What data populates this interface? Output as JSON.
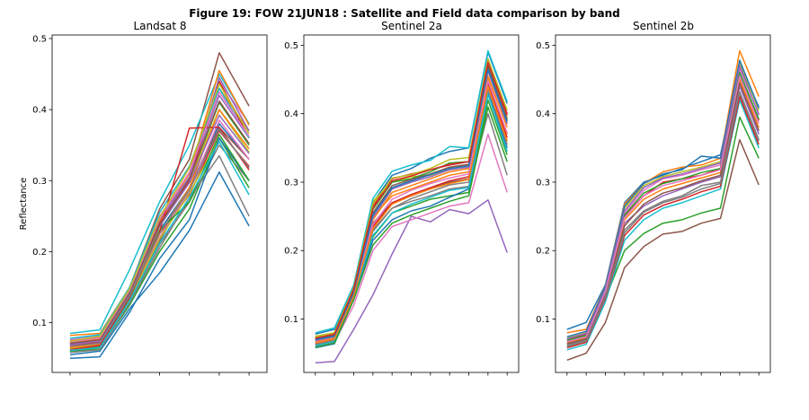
{
  "figure": {
    "title": "Figure 19: FOW 21JUN18 : Satellite and Field data comparison by band"
  },
  "palette": [
    "#1f77b4",
    "#ff7f0e",
    "#2ca02c",
    "#d62728",
    "#9467bd",
    "#8c564b",
    "#e377c2",
    "#7f7f7f",
    "#bcbd22",
    "#17becf"
  ],
  "chart_data": [
    {
      "type": "line",
      "title": "Landsat 8",
      "xlabel": "",
      "ylabel": "Reflectance",
      "xlim": [
        -0.6,
        6.6
      ],
      "ylim": [
        0.03,
        0.505
      ],
      "yticks": [
        0.1,
        0.2,
        0.3,
        0.4,
        0.5
      ],
      "x": [
        0,
        1,
        2,
        3,
        4,
        5,
        6
      ],
      "series": [
        {
          "values": [
            0.07,
            0.075,
            0.14,
            0.23,
            0.29,
            0.38,
            0.33
          ]
        },
        {
          "values": [
            0.082,
            0.085,
            0.15,
            0.255,
            0.32,
            0.43,
            0.37
          ]
        },
        {
          "values": [
            0.075,
            0.08,
            0.145,
            0.245,
            0.3,
            0.41,
            0.35
          ]
        },
        {
          "values": [
            0.068,
            0.072,
            0.14,
            0.225,
            0.28,
            0.37,
            0.32
          ]
        },
        {
          "values": [
            0.072,
            0.078,
            0.148,
            0.24,
            0.305,
            0.42,
            0.36
          ]
        },
        {
          "values": [
            0.074,
            0.08,
            0.15,
            0.26,
            0.33,
            0.48,
            0.405
          ]
        },
        {
          "values": [
            0.076,
            0.082,
            0.145,
            0.25,
            0.31,
            0.44,
            0.38
          ]
        },
        {
          "values": [
            0.065,
            0.068,
            0.13,
            0.21,
            0.27,
            0.35,
            0.3
          ]
        },
        {
          "values": [
            0.07,
            0.076,
            0.14,
            0.235,
            0.3,
            0.4,
            0.34
          ]
        },
        {
          "values": [
            0.085,
            0.09,
            0.175,
            0.27,
            0.35,
            0.45,
            0.38
          ]
        },
        {
          "values": [
            0.055,
            0.06,
            0.12,
            0.17,
            0.23,
            0.312,
            0.236
          ]
        },
        {
          "values": [
            0.072,
            0.078,
            0.142,
            0.242,
            0.31,
            0.455,
            0.378
          ]
        },
        {
          "values": [
            0.06,
            0.063,
            0.125,
            0.2,
            0.26,
            0.36,
            0.29
          ]
        },
        {
          "values": [
            0.068,
            0.074,
            0.14,
            0.24,
            0.3,
            0.44,
            0.36
          ]
        },
        {
          "values": [
            0.07,
            0.075,
            0.145,
            0.245,
            0.305,
            0.445,
            0.37
          ]
        },
        {
          "values": [
            0.063,
            0.066,
            0.13,
            0.215,
            0.29,
            0.375,
            0.33
          ]
        },
        {
          "values": [
            0.066,
            0.07,
            0.135,
            0.22,
            0.285,
            0.385,
            0.33
          ]
        },
        {
          "values": [
            0.058,
            0.062,
            0.128,
            0.205,
            0.275,
            0.335,
            0.25
          ]
        },
        {
          "values": [
            0.064,
            0.068,
            0.132,
            0.218,
            0.282,
            0.36,
            0.3
          ]
        },
        {
          "values": [
            0.078,
            0.083,
            0.15,
            0.255,
            0.32,
            0.43,
            0.36
          ]
        },
        {
          "values": [
            0.05,
            0.052,
            0.115,
            0.19,
            0.245,
            0.36,
            0.3
          ]
        },
        {
          "values": [
            0.065,
            0.07,
            0.135,
            0.225,
            0.29,
            0.4,
            0.345
          ]
        },
        {
          "values": [
            0.06,
            0.066,
            0.135,
            0.23,
            0.27,
            0.365,
            0.3
          ]
        },
        {
          "values": [
            0.062,
            0.068,
            0.136,
            0.228,
            0.374,
            0.375,
            0.315
          ]
        },
        {
          "values": [
            0.069,
            0.074,
            0.141,
            0.236,
            0.297,
            0.392,
            0.338
          ]
        },
        {
          "values": [
            0.071,
            0.076,
            0.143,
            0.238,
            0.302,
            0.412,
            0.352
          ]
        },
        {
          "values": [
            0.073,
            0.079,
            0.146,
            0.246,
            0.312,
            0.425,
            0.362
          ]
        },
        {
          "values": [
            0.067,
            0.071,
            0.138,
            0.226,
            0.287,
            0.372,
            0.318
          ]
        },
        {
          "values": [
            0.074,
            0.081,
            0.148,
            0.248,
            0.318,
            0.436,
            0.366
          ]
        },
        {
          "values": [
            0.061,
            0.065,
            0.131,
            0.212,
            0.276,
            0.355,
            0.28
          ]
        }
      ]
    },
    {
      "type": "line",
      "title": "Sentinel 2a",
      "xlabel": "",
      "ylabel": "",
      "xlim": [
        -0.6,
        10.6
      ],
      "ylim": [
        0.022,
        0.515
      ],
      "yticks": [
        0.1,
        0.2,
        0.3,
        0.4,
        0.5
      ],
      "x": [
        0,
        1,
        2,
        3,
        4,
        5,
        6,
        7,
        8,
        9,
        10
      ],
      "series": [
        {
          "values": [
            0.078,
            0.085,
            0.145,
            0.27,
            0.31,
            0.32,
            0.335,
            0.345,
            0.35,
            0.49,
            0.415
          ]
        },
        {
          "values": [
            0.07,
            0.076,
            0.14,
            0.25,
            0.28,
            0.29,
            0.3,
            0.31,
            0.315,
            0.45,
            0.37
          ]
        },
        {
          "values": [
            0.065,
            0.07,
            0.13,
            0.22,
            0.255,
            0.265,
            0.275,
            0.28,
            0.285,
            0.42,
            0.34
          ]
        },
        {
          "values": [
            0.072,
            0.078,
            0.145,
            0.265,
            0.305,
            0.312,
            0.318,
            0.325,
            0.33,
            0.48,
            0.4
          ]
        },
        {
          "values": [
            0.036,
            0.038,
            0.085,
            0.135,
            0.195,
            0.25,
            0.242,
            0.26,
            0.254,
            0.274,
            0.197
          ]
        },
        {
          "values": [
            0.068,
            0.075,
            0.14,
            0.24,
            0.27,
            0.28,
            0.29,
            0.3,
            0.305,
            0.44,
            0.36
          ]
        },
        {
          "values": [
            0.06,
            0.066,
            0.12,
            0.2,
            0.235,
            0.245,
            0.255,
            0.265,
            0.27,
            0.37,
            0.285
          ]
        },
        {
          "values": [
            0.062,
            0.068,
            0.135,
            0.23,
            0.262,
            0.272,
            0.28,
            0.29,
            0.294,
            0.4,
            0.31
          ]
        },
        {
          "values": [
            0.075,
            0.08,
            0.148,
            0.272,
            0.3,
            0.308,
            0.31,
            0.32,
            0.325,
            0.475,
            0.395
          ]
        },
        {
          "values": [
            0.08,
            0.087,
            0.15,
            0.276,
            0.316,
            0.325,
            0.332,
            0.352,
            0.35,
            0.492,
            0.418
          ]
        },
        {
          "values": [
            0.058,
            0.064,
            0.13,
            0.215,
            0.245,
            0.258,
            0.265,
            0.278,
            0.29,
            0.43,
            0.35
          ]
        },
        {
          "values": [
            0.067,
            0.072,
            0.138,
            0.245,
            0.285,
            0.295,
            0.305,
            0.315,
            0.32,
            0.455,
            0.38
          ]
        },
        {
          "values": [
            0.073,
            0.079,
            0.142,
            0.26,
            0.3,
            0.305,
            0.315,
            0.328,
            0.33,
            0.47,
            0.39
          ]
        },
        {
          "values": [
            0.064,
            0.07,
            0.136,
            0.235,
            0.27,
            0.282,
            0.292,
            0.302,
            0.308,
            0.445,
            0.365
          ]
        },
        {
          "values": [
            0.069,
            0.074,
            0.14,
            0.248,
            0.29,
            0.3,
            0.308,
            0.318,
            0.322,
            0.462,
            0.385
          ]
        },
        {
          "values": [
            0.071,
            0.077,
            0.143,
            0.255,
            0.295,
            0.304,
            0.312,
            0.322,
            0.326,
            0.468,
            0.392
          ]
        },
        {
          "values": [
            0.066,
            0.071,
            0.137,
            0.238,
            0.275,
            0.288,
            0.298,
            0.306,
            0.312,
            0.448,
            0.372
          ]
        },
        {
          "values": [
            0.063,
            0.069,
            0.134,
            0.228,
            0.262,
            0.276,
            0.286,
            0.296,
            0.3,
            0.436,
            0.355
          ]
        },
        {
          "values": [
            0.074,
            0.079,
            0.146,
            0.268,
            0.306,
            0.311,
            0.32,
            0.333,
            0.336,
            0.48,
            0.405
          ]
        },
        {
          "values": [
            0.061,
            0.067,
            0.132,
            0.222,
            0.255,
            0.268,
            0.278,
            0.288,
            0.292,
            0.428,
            0.345
          ]
        },
        {
          "values": [
            0.07,
            0.075,
            0.139,
            0.252,
            0.292,
            0.302,
            0.311,
            0.32,
            0.324,
            0.465,
            0.388
          ]
        },
        {
          "values": [
            0.065,
            0.071,
            0.133,
            0.232,
            0.268,
            0.28,
            0.29,
            0.298,
            0.304,
            0.44,
            0.36
          ]
        },
        {
          "values": [
            0.059,
            0.065,
            0.128,
            0.208,
            0.24,
            0.252,
            0.262,
            0.272,
            0.28,
            0.41,
            0.33
          ]
        },
        {
          "values": [
            0.072,
            0.078,
            0.144,
            0.262,
            0.302,
            0.309,
            0.318,
            0.326,
            0.33,
            0.475,
            0.398
          ]
        }
      ]
    },
    {
      "type": "line",
      "title": "Sentinel 2b",
      "xlabel": "",
      "ylabel": "",
      "xlim": [
        -0.6,
        10.6
      ],
      "ylim": [
        0.022,
        0.515
      ],
      "yticks": [
        0.1,
        0.2,
        0.3,
        0.4,
        0.5
      ],
      "x": [
        0,
        1,
        2,
        3,
        4,
        5,
        6,
        7,
        8,
        9,
        10
      ],
      "series": [
        {
          "values": [
            0.085,
            0.095,
            0.15,
            0.27,
            0.3,
            0.31,
            0.32,
            0.33,
            0.34,
            0.47,
            0.41
          ]
        },
        {
          "values": [
            0.08,
            0.085,
            0.148,
            0.268,
            0.298,
            0.315,
            0.322,
            0.325,
            0.335,
            0.492,
            0.425
          ]
        },
        {
          "values": [
            0.06,
            0.068,
            0.13,
            0.2,
            0.225,
            0.24,
            0.245,
            0.255,
            0.262,
            0.395,
            0.335
          ]
        },
        {
          "values": [
            0.07,
            0.078,
            0.14,
            0.25,
            0.28,
            0.3,
            0.305,
            0.31,
            0.32,
            0.455,
            0.39
          ]
        },
        {
          "values": [
            0.065,
            0.072,
            0.138,
            0.24,
            0.265,
            0.28,
            0.29,
            0.3,
            0.308,
            0.44,
            0.37
          ]
        },
        {
          "values": [
            0.04,
            0.05,
            0.095,
            0.175,
            0.206,
            0.224,
            0.228,
            0.24,
            0.247,
            0.362,
            0.296
          ]
        },
        {
          "values": [
            0.068,
            0.075,
            0.142,
            0.255,
            0.288,
            0.305,
            0.31,
            0.318,
            0.325,
            0.465,
            0.4
          ]
        },
        {
          "values": [
            0.062,
            0.07,
            0.135,
            0.23,
            0.258,
            0.272,
            0.28,
            0.295,
            0.3,
            0.43,
            0.36
          ]
        },
        {
          "values": [
            0.072,
            0.08,
            0.145,
            0.262,
            0.295,
            0.308,
            0.315,
            0.322,
            0.33,
            0.475,
            0.405
          ]
        },
        {
          "values": [
            0.055,
            0.063,
            0.125,
            0.215,
            0.245,
            0.262,
            0.27,
            0.28,
            0.29,
            0.42,
            0.35
          ]
        },
        {
          "values": [
            0.074,
            0.082,
            0.147,
            0.265,
            0.298,
            0.312,
            0.318,
            0.338,
            0.335,
            0.478,
            0.408
          ]
        },
        {
          "values": [
            0.066,
            0.073,
            0.139,
            0.245,
            0.275,
            0.29,
            0.298,
            0.306,
            0.314,
            0.45,
            0.38
          ]
        },
        {
          "values": [
            0.069,
            0.076,
            0.141,
            0.252,
            0.284,
            0.298,
            0.305,
            0.314,
            0.32,
            0.46,
            0.392
          ]
        },
        {
          "values": [
            0.058,
            0.066,
            0.13,
            0.222,
            0.252,
            0.266,
            0.275,
            0.286,
            0.294,
            0.425,
            0.355
          ]
        },
        {
          "values": [
            0.071,
            0.079,
            0.144,
            0.258,
            0.292,
            0.306,
            0.312,
            0.32,
            0.328,
            0.47,
            0.398
          ]
        },
        {
          "values": [
            0.064,
            0.071,
            0.136,
            0.236,
            0.268,
            0.284,
            0.292,
            0.302,
            0.31,
            0.445,
            0.375
          ]
        },
        {
          "values": [
            0.067,
            0.074,
            0.14,
            0.248,
            0.28,
            0.295,
            0.302,
            0.31,
            0.318,
            0.455,
            0.386
          ]
        },
        {
          "values": [
            0.06,
            0.068,
            0.132,
            0.226,
            0.256,
            0.27,
            0.278,
            0.29,
            0.298,
            0.432,
            0.362
          ]
        }
      ]
    }
  ]
}
